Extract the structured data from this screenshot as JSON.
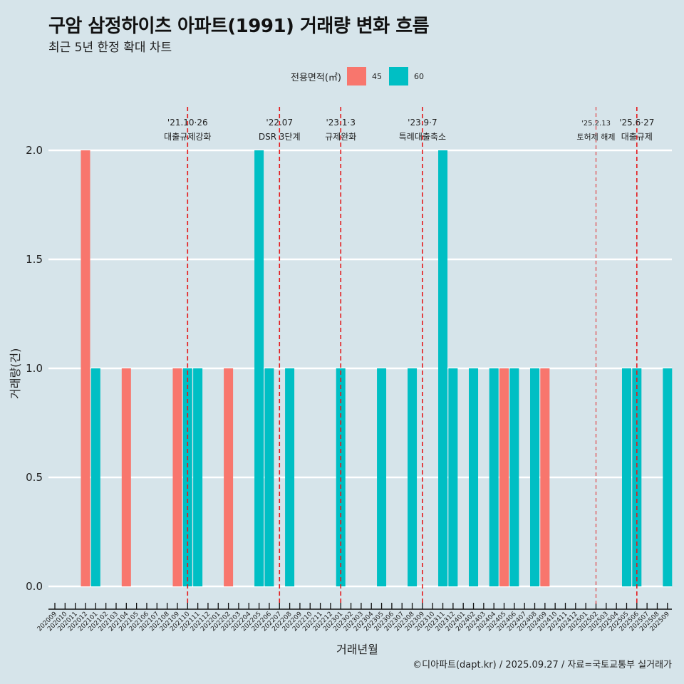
{
  "chart_data": {
    "type": "bar",
    "title": "구암 삼정하이츠 아파트(1991) 거래량 변화 흐름",
    "subtitle": "최근 5년 한정 확대 차트",
    "xlabel": "거래년월",
    "ylabel": "거래량(건)",
    "ylim": [
      0,
      2.0
    ],
    "yticks": [
      "0.0",
      "0.5",
      "1.0",
      "1.5",
      "2.0"
    ],
    "ytick_values": [
      0,
      0.5,
      1.0,
      1.5,
      2.0
    ],
    "grid": true,
    "legend": {
      "title": "전용면적(㎡)",
      "position": "top",
      "entries": [
        {
          "name": "45",
          "color": "#f8766d"
        },
        {
          "name": "60",
          "color": "#00bfc4"
        }
      ]
    },
    "categories": [
      "202009",
      "202010",
      "202011",
      "202012",
      "202101",
      "202102",
      "202103",
      "202104",
      "202105",
      "202106",
      "202107",
      "202108",
      "202109",
      "202110",
      "202111",
      "202112",
      "202201",
      "202202",
      "202203",
      "202204",
      "202205",
      "202206",
      "202207",
      "202208",
      "202209",
      "202210",
      "202211",
      "202212",
      "202301",
      "202302",
      "202303",
      "202304",
      "202305",
      "202306",
      "202307",
      "202308",
      "202309",
      "202310",
      "202311",
      "202312",
      "202401",
      "202402",
      "202403",
      "202404",
      "202405",
      "202406",
      "202407",
      "202408",
      "202409",
      "202410",
      "202411",
      "202412",
      "202501",
      "202502",
      "202503",
      "202504",
      "202505",
      "202506",
      "202507",
      "202508",
      "202509"
    ],
    "bars": [
      {
        "month": "202012",
        "area": "45",
        "value": 2
      },
      {
        "month": "202101",
        "area": "60",
        "value": 1
      },
      {
        "month": "202104",
        "area": "45",
        "value": 1
      },
      {
        "month": "202109",
        "area": "45",
        "value": 1
      },
      {
        "month": "202110",
        "area": "60",
        "value": 1
      },
      {
        "month": "202111",
        "area": "60",
        "value": 1
      },
      {
        "month": "202202",
        "area": "45",
        "value": 1
      },
      {
        "month": "202205",
        "area": "60",
        "value": 2
      },
      {
        "month": "202206",
        "area": "60",
        "value": 1
      },
      {
        "month": "202208",
        "area": "60",
        "value": 1
      },
      {
        "month": "202301",
        "area": "60",
        "value": 1
      },
      {
        "month": "202305",
        "area": "60",
        "value": 1
      },
      {
        "month": "202308",
        "area": "60",
        "value": 1
      },
      {
        "month": "202311",
        "area": "60",
        "value": 2
      },
      {
        "month": "202312",
        "area": "60",
        "value": 1
      },
      {
        "month": "202402",
        "area": "60",
        "value": 1
      },
      {
        "month": "202404",
        "area": "60",
        "value": 1
      },
      {
        "month": "202405",
        "area": "45",
        "value": 1
      },
      {
        "month": "202406",
        "area": "60",
        "value": 1
      },
      {
        "month": "202408",
        "area": "60",
        "value": 1
      },
      {
        "month": "202409",
        "area": "45",
        "value": 1
      },
      {
        "month": "202505",
        "area": "60",
        "value": 1
      },
      {
        "month": "202506",
        "area": "60",
        "value": 1
      },
      {
        "month": "202509",
        "area": "60",
        "value": 1
      }
    ],
    "annotations": [
      {
        "month": "202110",
        "date": "'21.10·26",
        "label": "대출규제강화",
        "style": "dashed"
      },
      {
        "month": "202207",
        "date": "'22.07",
        "label": "DSR 3단계",
        "style": "dashed"
      },
      {
        "month": "202301",
        "date": "'23.1·3",
        "label": "규제완화",
        "style": "dashed"
      },
      {
        "month": "202309",
        "date": "'23.9·7",
        "label": "특례대출축소",
        "style": "dashed"
      },
      {
        "month": "202502",
        "date": "'25.2.13",
        "label": "토허제 해제",
        "style": "thin-dashed"
      },
      {
        "month": "202506",
        "date": "'25.6·27",
        "label": "대출규제",
        "style": "dashed"
      }
    ],
    "caption": "©디아파트(dapt.kr) / 2025.09.27 / 자료=국토교통부 실거래가"
  }
}
